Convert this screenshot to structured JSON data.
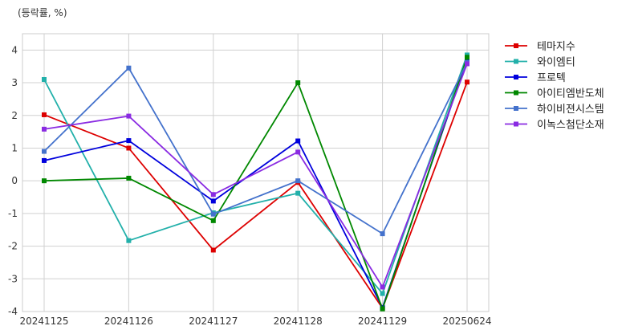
{
  "chart_data": {
    "type": "line",
    "title": "",
    "unit_label": "(등락률, %)",
    "xlabel": "",
    "ylabel": "",
    "x": [
      "20241125",
      "20241126",
      "20241127",
      "20241128",
      "20241129",
      "20250624"
    ],
    "ylim": [
      -4,
      4.5
    ],
    "yticks": [
      -4,
      -3,
      -2,
      -1,
      0,
      1,
      2,
      3,
      4
    ],
    "grid": true,
    "legend_position": "right",
    "series": [
      {
        "name": "테마지수",
        "color": "#dd0000",
        "values": [
          2.02,
          1.0,
          -2.12,
          -0.05,
          -3.9,
          3.02
        ]
      },
      {
        "name": "와이엠티",
        "color": "#22b0aa",
        "values": [
          3.1,
          -1.83,
          -0.98,
          -0.38,
          -3.45,
          3.85
        ]
      },
      {
        "name": "프로텍",
        "color": "#0000dd",
        "values": [
          0.62,
          1.23,
          -0.62,
          1.22,
          -3.88,
          3.72
        ]
      },
      {
        "name": "아이티엠반도체",
        "color": "#008800",
        "values": [
          0.0,
          0.08,
          -1.22,
          3.0,
          -3.92,
          3.78
        ]
      },
      {
        "name": "하이비젼시스템",
        "color": "#4472cc",
        "values": [
          0.9,
          3.45,
          -1.02,
          0.0,
          -1.62,
          3.62
        ]
      },
      {
        "name": "이녹스첨단소재",
        "color": "#8a2be2",
        "values": [
          1.58,
          1.98,
          -0.42,
          0.88,
          -3.25,
          3.58
        ]
      }
    ]
  }
}
